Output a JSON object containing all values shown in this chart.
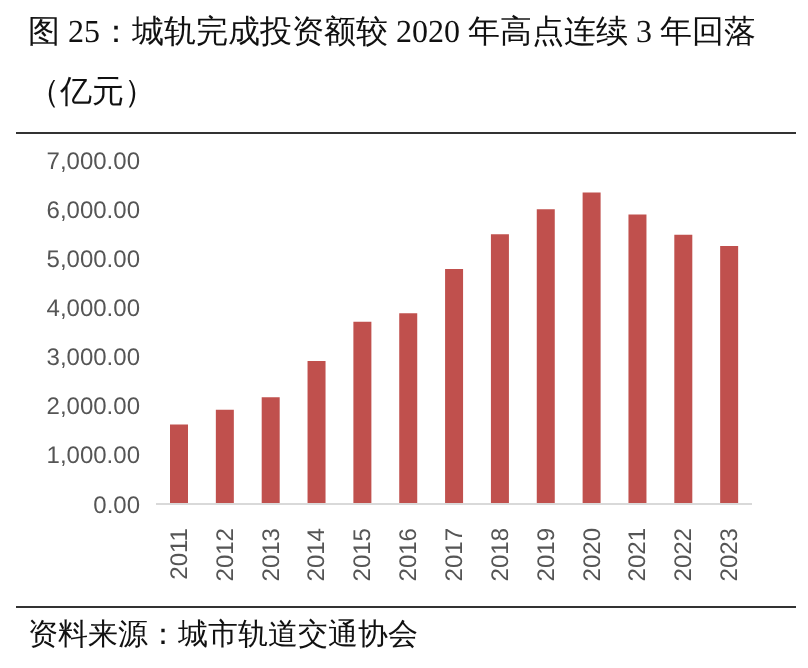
{
  "chart_data": {
    "type": "bar",
    "title": "图 25：城轨完成投资额较 2020 年高点连续 3 年回落（亿元）",
    "annotations": [
      "资料来源：城市轨道交通协会"
    ],
    "categories": [
      "2011",
      "2012",
      "2013",
      "2014",
      "2015",
      "2016",
      "2017",
      "2018",
      "2019",
      "2020",
      "2021",
      "2022",
      "2023"
    ],
    "values": [
      1620,
      1920,
      2170,
      2910,
      3710,
      3880,
      4780,
      5490,
      6000,
      6340,
      5890,
      5480,
      5250
    ],
    "color": "#c0504d",
    "ylim": [
      0,
      7000
    ],
    "yticks": [
      {
        "value": 0,
        "label": "0.00"
      },
      {
        "value": 1000,
        "label": "1,000.00"
      },
      {
        "value": 2000,
        "label": "2,000.00"
      },
      {
        "value": 3000,
        "label": "3,000.00"
      },
      {
        "value": 4000,
        "label": "4,000.00"
      },
      {
        "value": 5000,
        "label": "5,000.00"
      },
      {
        "value": 6000,
        "label": "6,000.00"
      },
      {
        "value": 7000,
        "label": "7,000.00"
      }
    ],
    "grid": false,
    "legend": false
  }
}
